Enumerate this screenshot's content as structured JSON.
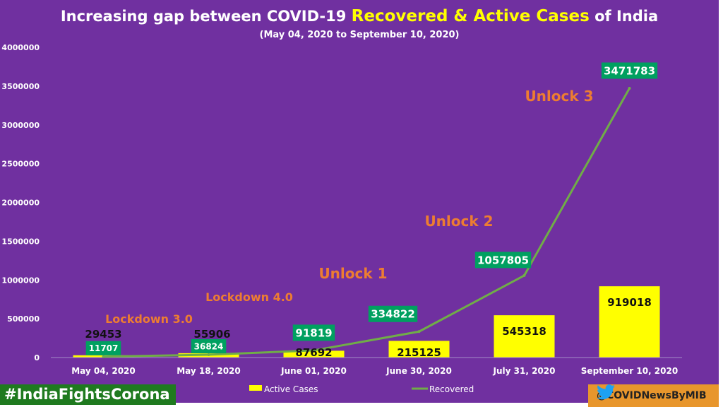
{
  "title_parts": {
    "pre": "Increasing gap between COVID-19 ",
    "highlight": "Recovered & Active Cases",
    "post": " of India"
  },
  "subtitle": "(May 04, 2020  to September 10, 2020)",
  "chart_data": {
    "type": "bar",
    "title": "Increasing gap between COVID-19 Recovered & Active Cases of India",
    "subtitle": "(May 04, 2020  to September 10, 2020)",
    "categories": [
      "May 04, 2020",
      "May 18, 2020",
      "June 01, 2020",
      "June 30, 2020",
      "July 31, 2020",
      "September 10, 2020"
    ],
    "series": [
      {
        "name": "Active Cases",
        "type": "bar",
        "color": "#FFFF00",
        "values": [
          29453,
          55906,
          87692,
          215125,
          545318,
          919018
        ]
      },
      {
        "name": "Recovered",
        "type": "line",
        "color": "#70AD47",
        "values": [
          11707,
          36824,
          91819,
          334822,
          1057805,
          3471783
        ]
      }
    ],
    "ylim": [
      0,
      4000000
    ],
    "yticks": [
      0,
      500000,
      1000000,
      1500000,
      2000000,
      2500000,
      3000000,
      3500000,
      4000000
    ],
    "legend": "bottom",
    "annotations": [
      {
        "text": "Lockdown 3.0",
        "category": "May 04, 2020"
      },
      {
        "text": "Lockdown 4.0",
        "category": "May 18, 2020"
      },
      {
        "text": "Unlock 1",
        "category": "June 01, 2020"
      },
      {
        "text": "Unlock 2",
        "category": "June 30, 2020"
      },
      {
        "text": "Unlock 3",
        "category": "July 31, 2020"
      }
    ]
  },
  "footer": {
    "hashtag": "#IndiaFightsCorona",
    "handle": "@COVIDNewsByMIB",
    "icon": "twitter-bird-icon"
  }
}
